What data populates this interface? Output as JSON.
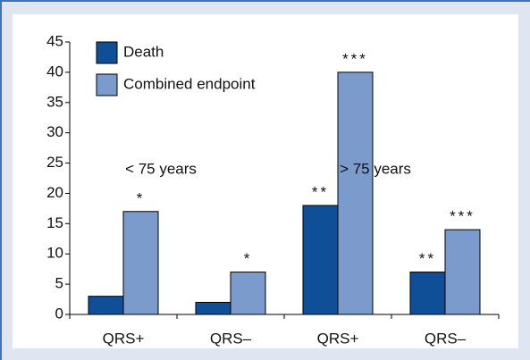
{
  "chart_data": {
    "type": "bar",
    "categories": [
      "QRS+",
      "QRS–",
      "QRS+",
      "QRS–"
    ],
    "series": [
      {
        "name": "Death",
        "color": "#0f4f97",
        "values": [
          3,
          2,
          18,
          7
        ],
        "significance": [
          null,
          null,
          "**",
          "**"
        ]
      },
      {
        "name": "Combined endpoint",
        "color": "#7a9bcc",
        "values": [
          17,
          7,
          40,
          14
        ],
        "significance": [
          "*",
          "*",
          "***",
          "***"
        ]
      }
    ],
    "group_labels": [
      "< 75 years",
      "> 75 years"
    ],
    "ylim": [
      0,
      45
    ],
    "yticks": [
      0,
      5,
      10,
      15,
      20,
      25,
      30,
      35,
      40,
      45
    ],
    "legend": "top-left",
    "grid": false
  }
}
